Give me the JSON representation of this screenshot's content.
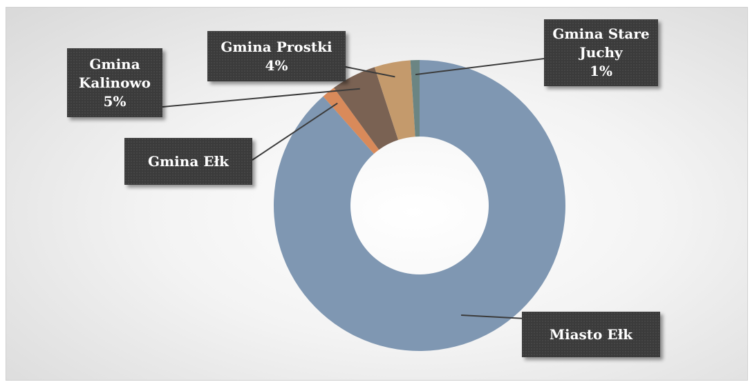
{
  "chart_data": {
    "type": "donut",
    "categories": [
      "Miasto Ełk",
      "Gmina Ełk",
      "Gmina Kalinowo",
      "Gmina Prostki",
      "Gmina Stare Juchy"
    ],
    "values": [
      88.5,
      1.5,
      5,
      4,
      1
    ],
    "value_labels": [
      null,
      null,
      "5%",
      "4%",
      "1%"
    ],
    "colors": [
      "#7f97b2",
      "#d98a5a",
      "#7a6253",
      "#c49a6c",
      "#6b8583"
    ]
  }
}
